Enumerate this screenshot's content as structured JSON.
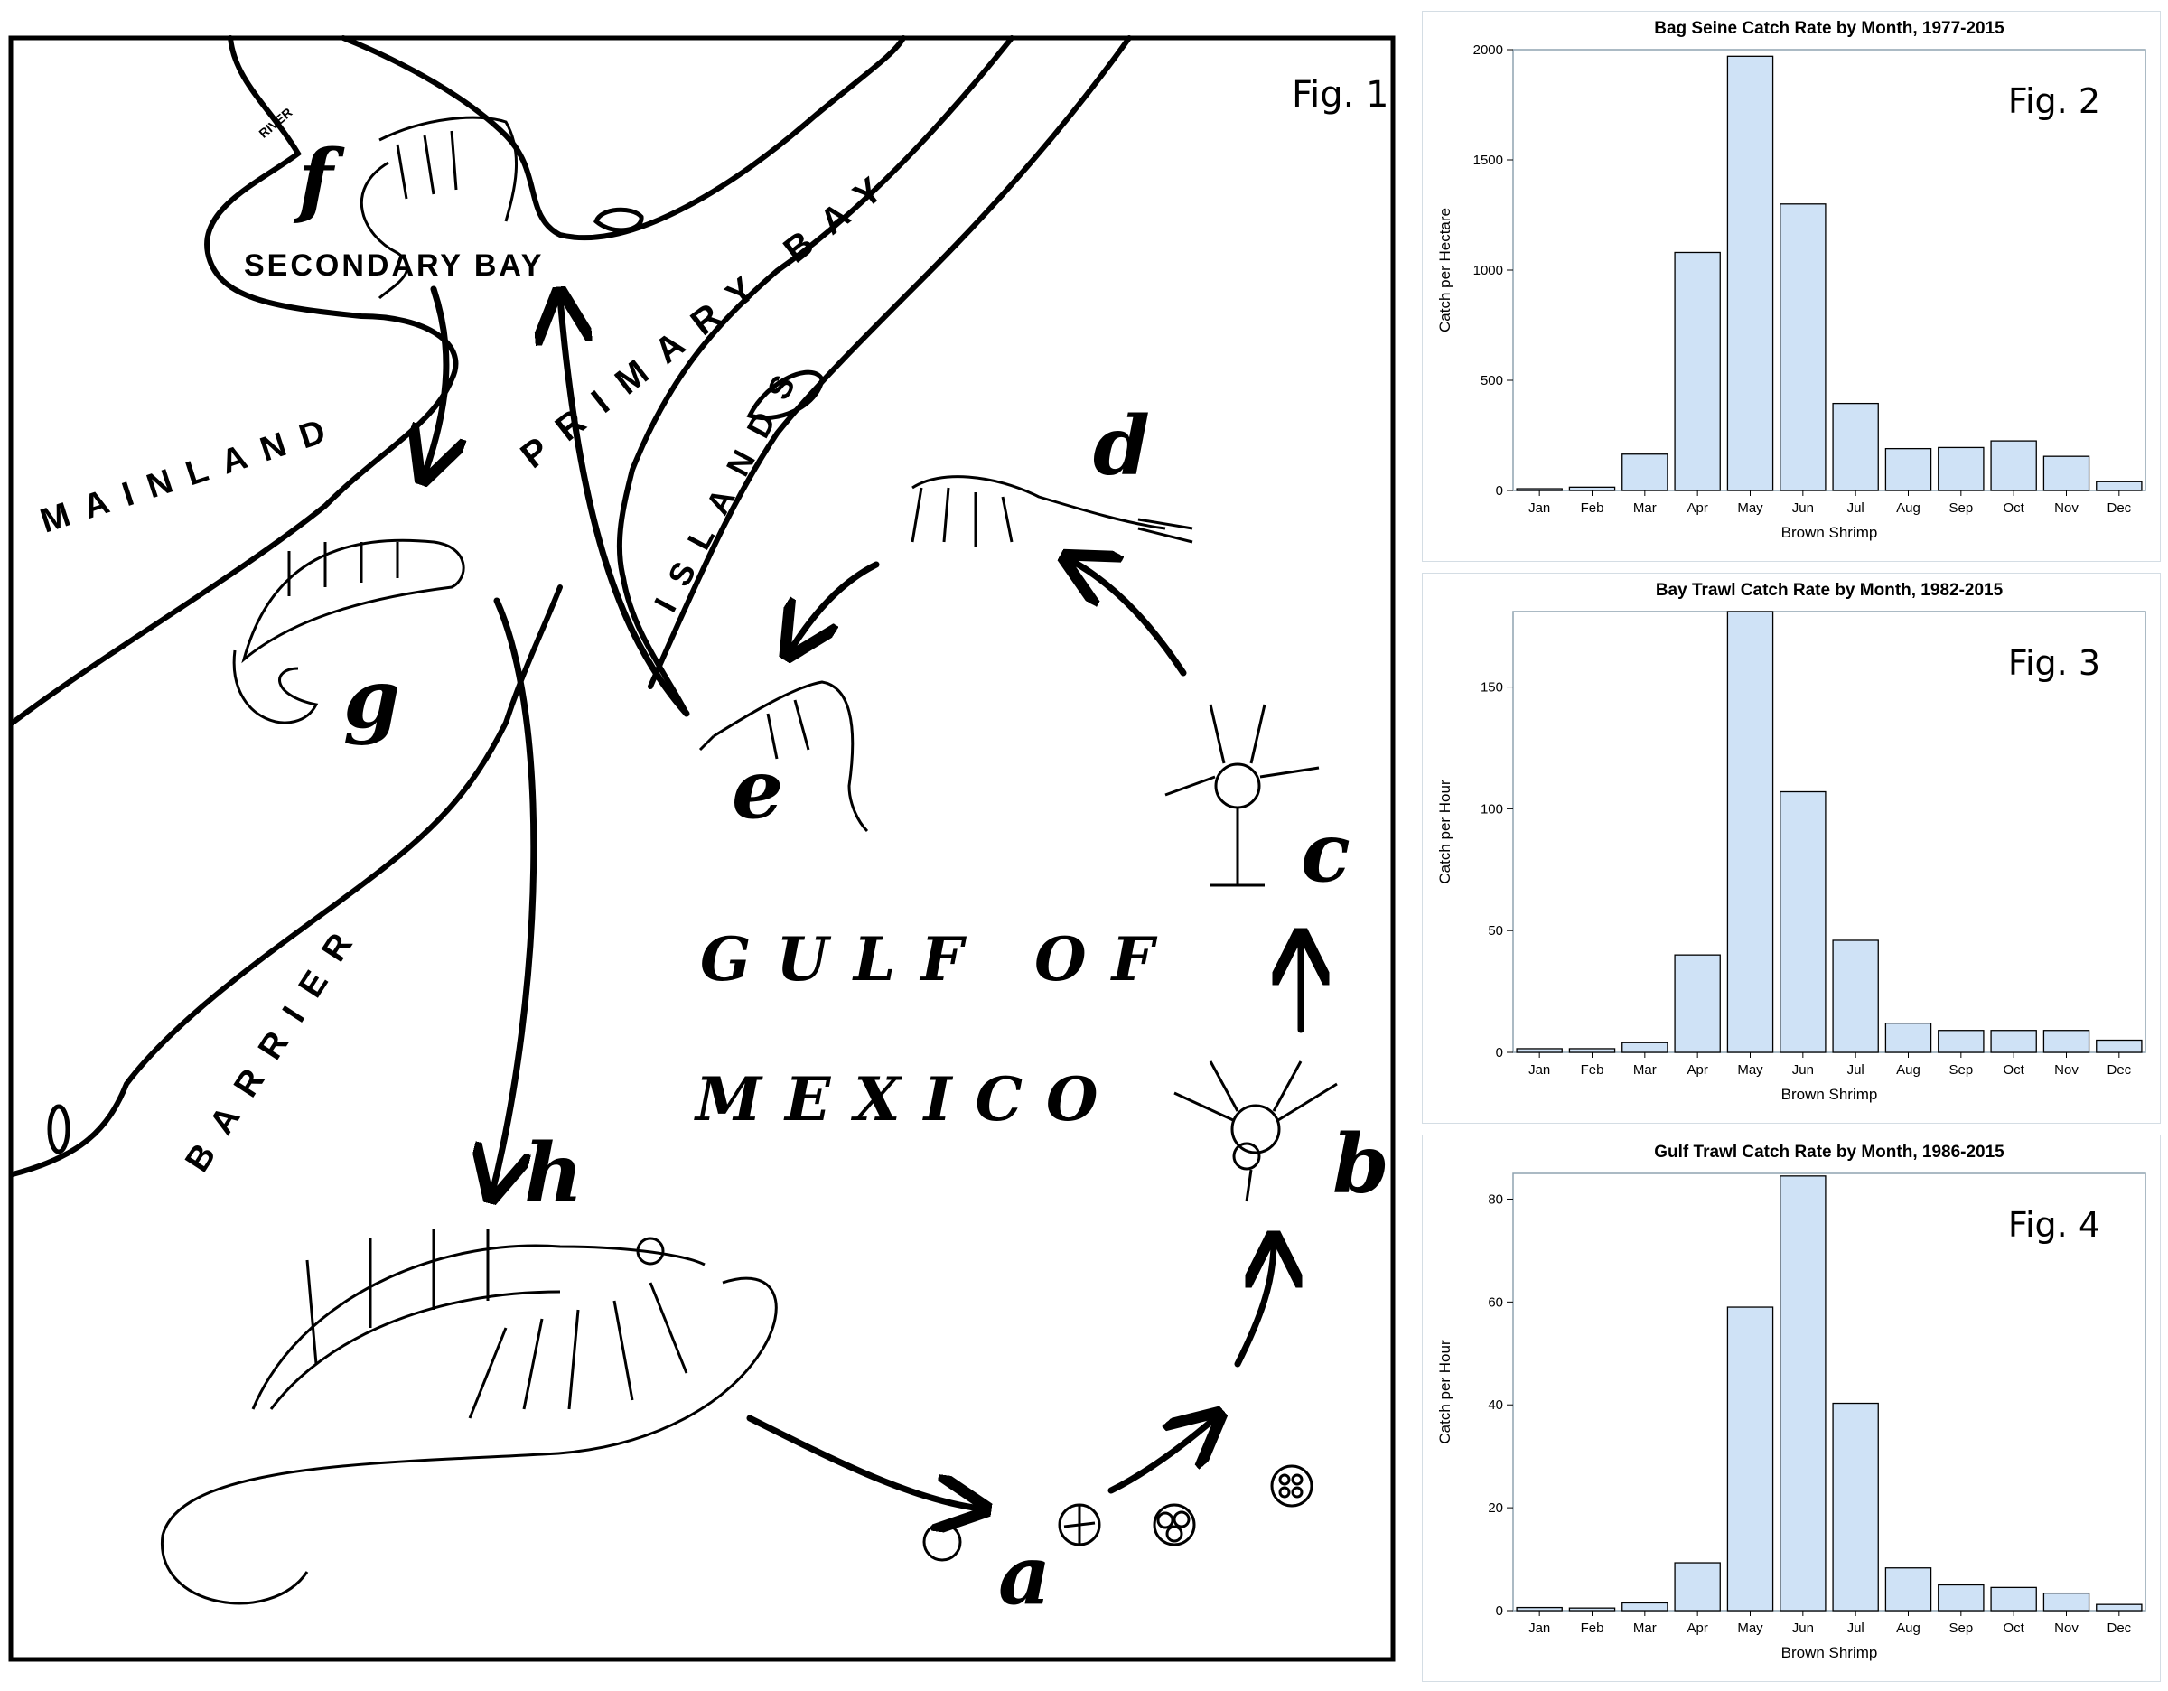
{
  "figure1": {
    "fig_label": "Fig. 1",
    "labels": {
      "river": "RIVER",
      "secondary_bay": "SECONDARY BAY",
      "primary_bay": "PRIMARY BAY",
      "mainland": "MAINLAND",
      "islands": "ISLANDS",
      "barrier": "BARRIER",
      "gulf_of": "GULF OF",
      "mexico": "MEXICO"
    },
    "stages": [
      "a",
      "b",
      "c",
      "d",
      "e",
      "f",
      "g",
      "h"
    ]
  },
  "chart_data": [
    {
      "type": "bar",
      "fig_label": "Fig. 2",
      "title": "Bag Seine Catch Rate by Month, 1977-2015",
      "xlabel": "Brown Shrimp",
      "ylabel": "Catch per Hectare",
      "categories": [
        "Jan",
        "Feb",
        "Mar",
        "Apr",
        "May",
        "Jun",
        "Jul",
        "Aug",
        "Sep",
        "Oct",
        "Nov",
        "Dec"
      ],
      "values": [
        8,
        15,
        165,
        1080,
        1970,
        1300,
        395,
        190,
        195,
        225,
        155,
        40
      ],
      "ylim": [
        0,
        2000
      ],
      "yticks": [
        0,
        500,
        1000,
        1500,
        2000
      ],
      "bar_color": "#cfe2f6"
    },
    {
      "type": "bar",
      "fig_label": "Fig. 3",
      "title": "Bay Trawl Catch Rate by Month, 1982-2015",
      "xlabel": "Brown Shrimp",
      "ylabel": "Catch per Hour",
      "categories": [
        "Jan",
        "Feb",
        "Mar",
        "Apr",
        "May",
        "Jun",
        "Jul",
        "Aug",
        "Sep",
        "Oct",
        "Nov",
        "Dec"
      ],
      "values": [
        1.5,
        1.5,
        4,
        40,
        181,
        107,
        46,
        12,
        9,
        9,
        9,
        5
      ],
      "ylim": [
        0,
        181
      ],
      "yticks": [
        0,
        50,
        100,
        150
      ],
      "bar_color": "#cfe2f6"
    },
    {
      "type": "bar",
      "fig_label": "Fig. 4",
      "title": "Gulf Trawl Catch Rate by Month, 1986-2015",
      "xlabel": "Brown Shrimp",
      "ylabel": "Catch per Hour",
      "categories": [
        "Jan",
        "Feb",
        "Mar",
        "Apr",
        "May",
        "Jun",
        "Jul",
        "Aug",
        "Sep",
        "Oct",
        "Nov",
        "Dec"
      ],
      "values": [
        0.6,
        0.5,
        1.5,
        9.3,
        59,
        84.5,
        40.3,
        8.3,
        5,
        4.5,
        3.4,
        1.2
      ],
      "ylim": [
        0,
        85
      ],
      "yticks": [
        0,
        20,
        40,
        60,
        80
      ],
      "bar_color": "#cfe2f6"
    }
  ]
}
